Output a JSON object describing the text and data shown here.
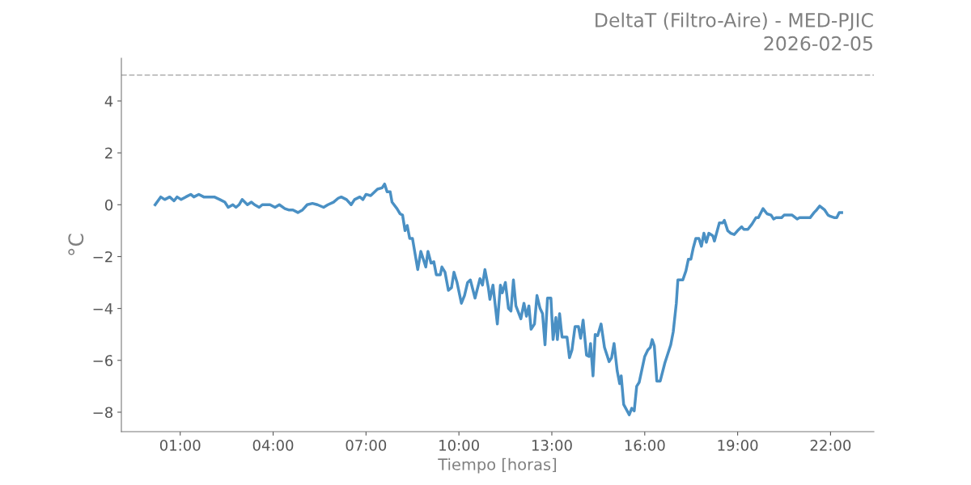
{
  "chart_data": {
    "type": "line",
    "title": "DeltaT (Filtro-Aire) - MED-PJIC",
    "subtitle": "2026-02-05",
    "xlabel": "Tiempo [horas]",
    "ylabel": "°C",
    "x": [
      0.19,
      0.37,
      0.5,
      0.66,
      0.8,
      0.9,
      1.03,
      1.18,
      1.34,
      1.44,
      1.6,
      1.76,
      2.1,
      2.28,
      2.44,
      2.55,
      2.7,
      2.8,
      2.9,
      3.0,
      3.17,
      3.3,
      3.4,
      3.55,
      3.65,
      3.9,
      4.06,
      4.2,
      4.38,
      4.5,
      4.64,
      4.8,
      4.95,
      5.1,
      5.27,
      5.43,
      5.63,
      5.77,
      5.95,
      6.1,
      6.2,
      6.37,
      6.52,
      6.63,
      6.8,
      6.9,
      7.0,
      7.15,
      7.37,
      7.52,
      7.6,
      7.68,
      7.78,
      7.84,
      8.0,
      8.1,
      8.18,
      8.26,
      8.33,
      8.41,
      8.5,
      8.67,
      8.77,
      8.93,
      9.0,
      9.1,
      9.19,
      9.27,
      9.4,
      9.45,
      9.55,
      9.66,
      9.76,
      9.84,
      9.94,
      10.08,
      10.18,
      10.28,
      10.37,
      10.52,
      10.68,
      10.76,
      10.84,
      10.95,
      11.0,
      11.1,
      11.24,
      11.34,
      11.4,
      11.5,
      11.6,
      11.68,
      11.76,
      11.84,
      12.0,
      12.1,
      12.18,
      12.26,
      12.33,
      12.44,
      12.52,
      12.62,
      12.7,
      12.78,
      12.86,
      12.97,
      13.04,
      13.13,
      13.18,
      13.25,
      13.33,
      13.49,
      13.57,
      13.65,
      13.75,
      13.86,
      13.93,
      14.01,
      14.12,
      14.2,
      14.25,
      14.33,
      14.4,
      14.48,
      14.59,
      14.7,
      14.85,
      14.93,
      15.01,
      15.11,
      15.19,
      15.24,
      15.32,
      15.5,
      15.58,
      15.66,
      15.74,
      15.82,
      16.0,
      16.1,
      16.18,
      16.24,
      16.31,
      16.39,
      16.5,
      16.65,
      16.84,
      16.92,
      17.02,
      17.07,
      17.23,
      17.33,
      17.41,
      17.49,
      17.57,
      17.65,
      17.75,
      17.83,
      17.91,
      17.99,
      18.07,
      18.2,
      18.25,
      18.41,
      18.52,
      18.57,
      18.68,
      18.78,
      18.89,
      19.0,
      19.13,
      19.2,
      19.33,
      19.46,
      19.59,
      19.67,
      19.82,
      19.95,
      20.08,
      20.16,
      20.24,
      20.42,
      20.5,
      20.76,
      20.92,
      21.0,
      21.34,
      21.47,
      21.55,
      21.65,
      21.81,
      21.92,
      22.0,
      22.13,
      22.2,
      22.28,
      22.36
    ],
    "series": [
      {
        "color": "#4a90c4",
        "values": [
          0.0,
          0.3,
          0.2,
          0.3,
          0.15,
          0.3,
          0.2,
          0.3,
          0.4,
          0.3,
          0.4,
          0.3,
          0.3,
          0.2,
          0.1,
          -0.1,
          0.0,
          -0.1,
          0.0,
          0.2,
          0.0,
          0.1,
          0.0,
          -0.1,
          0.0,
          0.0,
          -0.1,
          0.0,
          -0.15,
          -0.2,
          -0.2,
          -0.3,
          -0.2,
          0.0,
          0.05,
          0.0,
          -0.1,
          0.0,
          0.1,
          0.25,
          0.3,
          0.2,
          0.0,
          0.2,
          0.3,
          0.2,
          0.4,
          0.35,
          0.6,
          0.65,
          0.8,
          0.5,
          0.5,
          0.1,
          -0.15,
          -0.35,
          -0.4,
          -1.0,
          -0.8,
          -1.3,
          -1.3,
          -2.5,
          -1.8,
          -2.4,
          -1.8,
          -2.25,
          -2.2,
          -2.7,
          -2.7,
          -2.4,
          -2.6,
          -3.3,
          -3.2,
          -2.6,
          -3.0,
          -3.8,
          -3.5,
          -3.0,
          -2.9,
          -3.6,
          -2.85,
          -3.1,
          -2.5,
          -3.2,
          -3.65,
          -3.1,
          -4.6,
          -3.1,
          -3.4,
          -3.0,
          -4.0,
          -4.1,
          -2.9,
          -3.9,
          -4.4,
          -3.8,
          -4.3,
          -3.9,
          -4.8,
          -4.6,
          -3.5,
          -4.0,
          -4.2,
          -5.4,
          -3.6,
          -3.6,
          -5.2,
          -4.35,
          -5.2,
          -4.2,
          -5.1,
          -5.1,
          -5.9,
          -5.6,
          -4.7,
          -4.7,
          -5.15,
          -4.45,
          -5.8,
          -5.85,
          -5.35,
          -6.6,
          -5.0,
          -5.05,
          -4.6,
          -5.5,
          -6.05,
          -5.9,
          -5.35,
          -6.4,
          -6.9,
          -6.6,
          -7.7,
          -8.1,
          -7.85,
          -7.95,
          -7.0,
          -6.85,
          -5.85,
          -5.6,
          -5.5,
          -5.2,
          -5.45,
          -6.8,
          -6.8,
          -6.1,
          -5.4,
          -4.9,
          -3.8,
          -2.9,
          -2.9,
          -2.55,
          -2.1,
          -2.1,
          -1.65,
          -1.3,
          -1.3,
          -1.6,
          -1.1,
          -1.45,
          -1.1,
          -1.2,
          -1.4,
          -0.7,
          -0.7,
          -0.6,
          -1.0,
          -1.1,
          -1.15,
          -1.0,
          -0.85,
          -0.95,
          -0.95,
          -0.75,
          -0.5,
          -0.5,
          -0.15,
          -0.35,
          -0.4,
          -0.55,
          -0.5,
          -0.5,
          -0.4,
          -0.4,
          -0.55,
          -0.5,
          -0.5,
          -0.3,
          -0.2,
          -0.05,
          -0.2,
          -0.4,
          -0.45,
          -0.5,
          -0.5,
          -0.3,
          -0.3
        ]
      }
    ],
    "xlim": [
      -0.9,
      23.4
    ],
    "ylim": [
      -8.75,
      5.65
    ],
    "xticks": [
      {
        "value": 1,
        "label": "01:00"
      },
      {
        "value": 4,
        "label": "04:00"
      },
      {
        "value": 7,
        "label": "07:00"
      },
      {
        "value": 10,
        "label": "10:00"
      },
      {
        "value": 13,
        "label": "13:00"
      },
      {
        "value": 16,
        "label": "16:00"
      },
      {
        "value": 19,
        "label": "19:00"
      },
      {
        "value": 22,
        "label": "22:00"
      }
    ],
    "yticks": [
      {
        "value": -8,
        "label": "−8"
      },
      {
        "value": -6,
        "label": "−6"
      },
      {
        "value": -4,
        "label": "−4"
      },
      {
        "value": -2,
        "label": "−2"
      },
      0,
      2,
      4
    ],
    "ref_lines": [
      {
        "axis": "y",
        "value": 5,
        "color": "#bbbbbb",
        "line_style": "dashed"
      }
    ],
    "grid": false,
    "marker": "none",
    "line_style": "solid"
  }
}
